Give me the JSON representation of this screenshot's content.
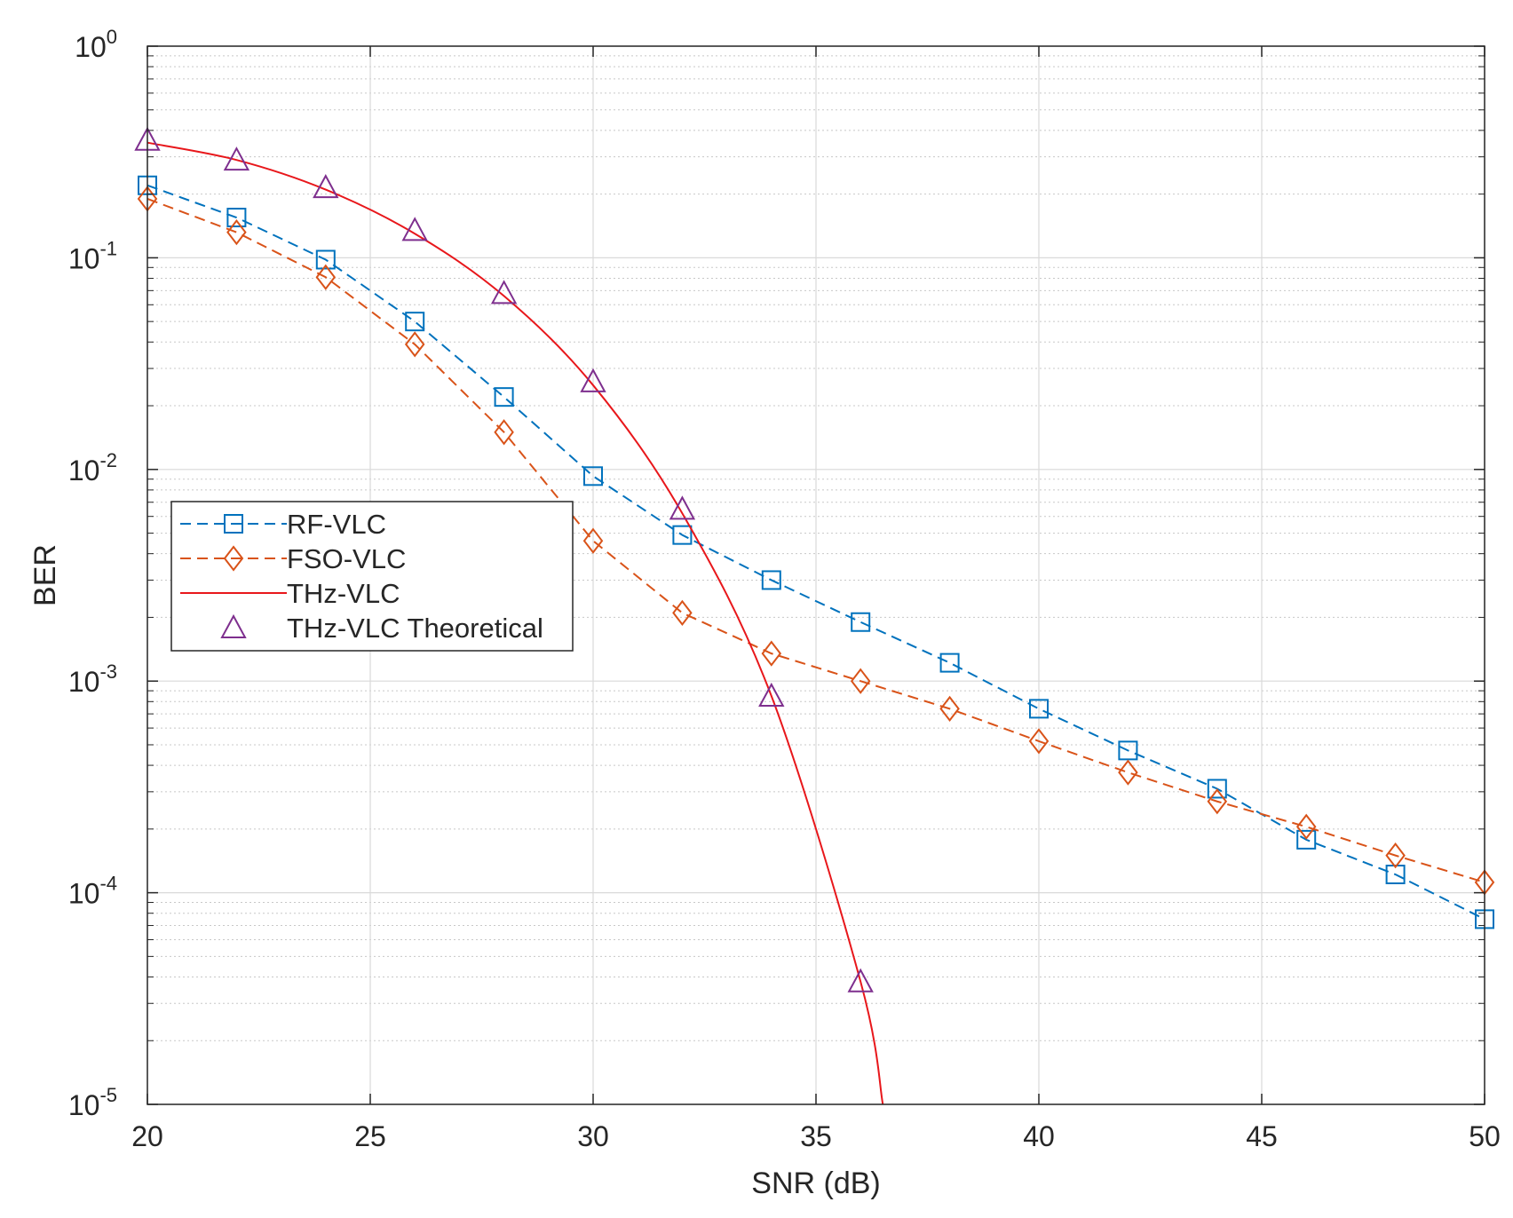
{
  "chart_data": {
    "type": "line",
    "title": "",
    "xlabel": "SNR (dB)",
    "ylabel": "BER",
    "xlim": [
      20,
      50
    ],
    "ylim": [
      1e-05,
      1
    ],
    "yscale": "log",
    "grid": true,
    "minor_grid": true,
    "legend_position": "center-left",
    "x_ticks": [
      {
        "value": 20,
        "label": "20"
      },
      {
        "value": 25,
        "label": "25"
      },
      {
        "value": 30,
        "label": "30"
      },
      {
        "value": 35,
        "label": "35"
      },
      {
        "value": 40,
        "label": "40"
      },
      {
        "value": 45,
        "label": "45"
      },
      {
        "value": 50,
        "label": "50"
      }
    ],
    "y_ticks": [
      {
        "value": 1,
        "base": "10",
        "exp": "0"
      },
      {
        "value": 0.1,
        "base": "10",
        "exp": "-1"
      },
      {
        "value": 0.01,
        "base": "10",
        "exp": "-2"
      },
      {
        "value": 0.001,
        "base": "10",
        "exp": "-3"
      },
      {
        "value": 0.0001,
        "base": "10",
        "exp": "-4"
      },
      {
        "value": 1e-05,
        "base": "10",
        "exp": "-5"
      }
    ],
    "series": [
      {
        "name": "RF-VLC",
        "color": "#0072BD",
        "line": "dashed",
        "marker": "square",
        "x": [
          20,
          22,
          24,
          26,
          28,
          30,
          32,
          34,
          36,
          38,
          40,
          42,
          44,
          46,
          48,
          50
        ],
        "y": [
          0.22,
          0.155,
          0.098,
          0.05,
          0.022,
          0.0093,
          0.0049,
          0.003,
          0.0019,
          0.00122,
          0.00074,
          0.00047,
          0.00031,
          0.000178,
          0.000122,
          7.5e-05
        ]
      },
      {
        "name": "FSO-VLC",
        "color": "#D95319",
        "line": "dashed",
        "marker": "diamond",
        "x": [
          20,
          22,
          24,
          26,
          28,
          30,
          32,
          34,
          36,
          38,
          40,
          42,
          44,
          46,
          48,
          50
        ],
        "y": [
          0.19,
          0.132,
          0.081,
          0.039,
          0.015,
          0.0046,
          0.0021,
          0.00135,
          0.001,
          0.00074,
          0.00052,
          0.00037,
          0.00027,
          0.000205,
          0.00015,
          0.000112
        ]
      },
      {
        "name": "THz-VLC",
        "color": "#E8171B",
        "line": "solid",
        "marker": "none",
        "x": [
          20,
          22,
          24,
          26,
          28,
          30,
          32,
          34,
          36,
          36.5
        ],
        "y": [
          0.35,
          0.29,
          0.21,
          0.13,
          0.066,
          0.025,
          0.0062,
          0.00085,
          3.8e-05,
          1e-05
        ]
      },
      {
        "name": "THz-VLC Theoretical",
        "color": "#7E2F8E",
        "line": "none",
        "marker": "triangle",
        "x": [
          20,
          22,
          24,
          26,
          28,
          30,
          32,
          34,
          36
        ],
        "y": [
          0.36,
          0.29,
          0.215,
          0.135,
          0.068,
          0.026,
          0.0065,
          0.00085,
          3.8e-05
        ]
      }
    ]
  }
}
